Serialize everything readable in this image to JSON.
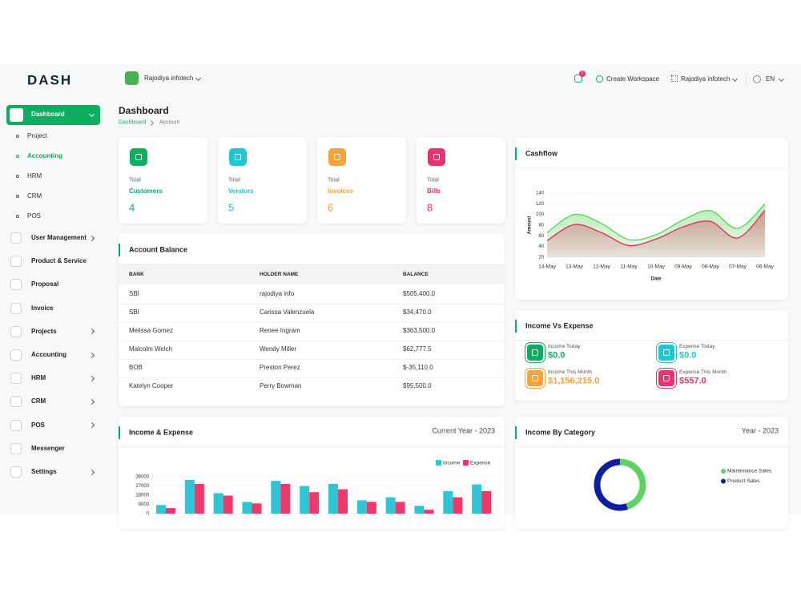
{
  "brand": "DASH",
  "header": {
    "workspace": "Rajodiya infotech",
    "notifications": 2,
    "create_workspace": "Create Workspace",
    "company": "Rajodiya infotech",
    "language": "EN"
  },
  "sidebar": {
    "items": [
      {
        "label": "Dashboard",
        "active": true,
        "children": [
          {
            "label": "Project"
          },
          {
            "label": "Accounting",
            "active": true
          },
          {
            "label": "HRM"
          },
          {
            "label": "CRM"
          },
          {
            "label": "POS"
          }
        ]
      },
      {
        "label": "User Management",
        "submenu": true
      },
      {
        "label": "Product & Service"
      },
      {
        "label": "Proposal"
      },
      {
        "label": "Invoice"
      },
      {
        "label": "Projects",
        "submenu": true
      },
      {
        "label": "Accounting",
        "submenu": true
      },
      {
        "label": "HRM",
        "submenu": true
      },
      {
        "label": "CRM",
        "submenu": true
      },
      {
        "label": "POS",
        "submenu": true
      },
      {
        "label": "Messenger"
      },
      {
        "label": "Settings",
        "submenu": true
      }
    ]
  },
  "page": {
    "title": "Dashboard",
    "breadcrumb": [
      "Dashboard",
      "Account"
    ]
  },
  "stats": [
    {
      "caption": "Total",
      "label": "Customers",
      "value": 4,
      "color": "#0caf60"
    },
    {
      "caption": "Total",
      "label": "Vendors",
      "value": 5,
      "color": "#1ec7d6"
    },
    {
      "caption": "Total",
      "label": "Invoices",
      "value": 6,
      "color": "#f7a33a"
    },
    {
      "caption": "Total",
      "label": "Bills",
      "value": 8,
      "color": "#e8336c"
    }
  ],
  "account_balance": {
    "title": "Account Balance",
    "columns": [
      "BANK",
      "HOLDER NAME",
      "BALANCE"
    ],
    "rows": [
      [
        "SBI",
        "rajodiya info",
        "$505,400.0"
      ],
      [
        "SBI",
        "Carissa Valenzuela",
        "$34,470.0"
      ],
      [
        "Melissa Gomez",
        "Renee Ingram",
        "$363,500.0"
      ],
      [
        "Malcolm Welch",
        "Wendy Miller",
        "$62,777.5"
      ],
      [
        "BOB",
        "Preston Perez",
        "$-35,110.0"
      ],
      [
        "Katelyn Cooper",
        "Perry Bowman",
        "$95,500.0"
      ]
    ]
  },
  "income_vs_expense": {
    "title": "Income Vs Expense",
    "items": [
      {
        "label": "Income Today",
        "value": "$0.0",
        "color": "#0caf60"
      },
      {
        "label": "Expense Today",
        "value": "$0.0",
        "color": "#1ec7d6"
      },
      {
        "label": "Income This Month",
        "value": "$1,156,215.0",
        "color": "#f7a33a"
      },
      {
        "label": "Expense This Month",
        "value": "$557.0",
        "color": "#e8336c"
      }
    ]
  },
  "chart_data": [
    {
      "type": "line",
      "title": "Cashflow",
      "xlabel": "Date",
      "ylabel": "Amount",
      "categories": [
        "14-May",
        "13-May",
        "12-May",
        "11-May",
        "10-May",
        "09-May",
        "08-May",
        "07-May",
        "06-May"
      ],
      "series": [
        {
          "color": "#5cd65c",
          "values": [
            66,
            100,
            83,
            53,
            62,
            90,
            107,
            74,
            120
          ]
        },
        {
          "color": "#d9365a",
          "values": [
            51,
            81,
            66,
            42,
            54,
            77,
            87,
            56,
            108
          ]
        }
      ],
      "ylim": [
        20,
        140
      ],
      "yticks": [
        20,
        40,
        60,
        80,
        100,
        120,
        140
      ],
      "grid": true
    },
    {
      "type": "bar",
      "title": "Income & Expense",
      "subtitle": "Current Year - 2023",
      "series": [
        {
          "name": "Income",
          "color": "#2ec6d4",
          "values": [
            8400,
            33000,
            20000,
            11500,
            32000,
            27000,
            29000,
            13000,
            16000,
            7700,
            22000,
            28500
          ]
        },
        {
          "name": "Expense",
          "color": "#f0386b",
          "values": [
            5400,
            29000,
            17600,
            10000,
            29000,
            21000,
            23800,
            11500,
            11500,
            3800,
            16000,
            22000
          ]
        }
      ],
      "ylim": [
        0,
        36000
      ],
      "yticks": [
        0,
        9000,
        18000,
        27000,
        36000
      ],
      "grid": true,
      "legend": "top-right"
    },
    {
      "type": "pie",
      "donut": true,
      "title": "Income By Category",
      "subtitle": "Year - 2023",
      "categories": [
        "Maintenance Sales",
        "Product Sales"
      ],
      "values": [
        45,
        55
      ],
      "colors": [
        "#5fd35f",
        "#0b1fa0"
      ],
      "legend": "right"
    }
  ]
}
